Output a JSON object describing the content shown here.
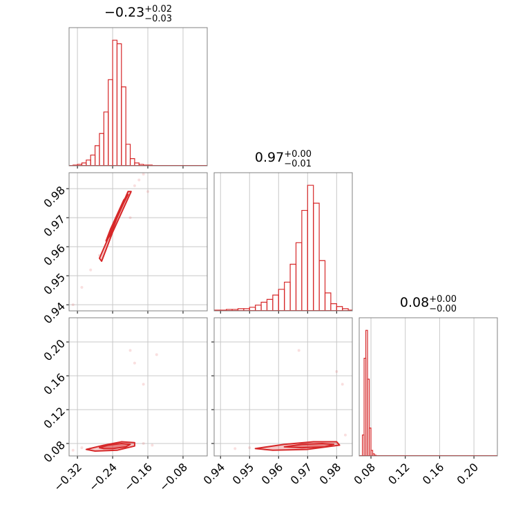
{
  "chart_data": [
    {
      "type": "histogram",
      "title": {
        "value": "−0.23",
        "plus": "+0.02",
        "minus": "−0.03"
      },
      "color": "#d62728",
      "xlim": [
        -0.339,
        -0.025
      ],
      "xticks": [
        {
          "value": -0.32,
          "label": "−0.32"
        },
        {
          "value": -0.24,
          "label": "−0.24"
        },
        {
          "value": -0.16,
          "label": "−0.16"
        },
        {
          "value": -0.08,
          "label": "−0.08"
        }
      ],
      "bins": [
        -0.34,
        -0.33,
        -0.32,
        -0.31,
        -0.3,
        -0.29,
        -0.28,
        -0.27,
        -0.26,
        -0.25,
        -0.24,
        -0.23,
        -0.22,
        -0.21,
        -0.2,
        -0.19,
        -0.18,
        -0.17,
        -0.16,
        -0.15,
        -0.14,
        -0.13,
        -0.12,
        -0.11,
        -0.1,
        -0.09,
        -0.08,
        -0.07,
        -0.06,
        -0.05,
        -0.04,
        -0.03
      ],
      "counts": [
        0,
        1,
        2,
        4,
        8,
        15,
        28,
        45,
        75,
        120,
        175,
        170,
        110,
        30,
        10,
        4,
        2,
        1,
        1,
        0,
        0,
        0,
        0,
        0,
        0,
        0,
        0,
        0,
        0,
        0,
        0
      ]
    },
    {
      "type": "contour",
      "color": "#d62728",
      "xlim": [
        -0.339,
        -0.025
      ],
      "xticks": [
        {
          "value": -0.32,
          "label": "−0.32"
        },
        {
          "value": -0.24,
          "label": "−0.24"
        },
        {
          "value": -0.16,
          "label": "−0.16"
        },
        {
          "value": -0.08,
          "label": "−0.08"
        }
      ],
      "ylim": [
        0.9379,
        0.9855
      ],
      "yticks": [
        0.94,
        0.95,
        0.96,
        0.97,
        0.98
      ],
      "contours": [
        {
          "x": [
            -0.27,
            -0.25,
            -0.225,
            -0.205,
            -0.198,
            -0.213,
            -0.24,
            -0.265
          ],
          "y": [
            0.956,
            0.963,
            0.972,
            0.979,
            0.979,
            0.974,
            0.965,
            0.955
          ]
        },
        {
          "x": [
            -0.255,
            -0.245,
            -0.23,
            -0.215,
            -0.205,
            -0.215,
            -0.23,
            -0.245
          ],
          "y": [
            0.962,
            0.966,
            0.971,
            0.976,
            0.978,
            0.975,
            0.97,
            0.964
          ]
        }
      ],
      "points": {
        "x": [
          -0.33,
          -0.31,
          -0.29,
          -0.27,
          -0.19,
          -0.18,
          -0.17,
          -0.16,
          -0.2
        ],
        "y": [
          0.94,
          0.946,
          0.952,
          0.957,
          0.981,
          0.983,
          0.985,
          0.979,
          0.97
        ]
      }
    },
    {
      "type": "histogram",
      "title": {
        "value": "0.97",
        "plus": "+0.00",
        "minus": "−0.01"
      },
      "color": "#d62728",
      "xlim": [
        0.9378,
        0.9854
      ],
      "xticks": [
        0.94,
        0.95,
        0.96,
        0.97,
        0.98
      ],
      "bins": [
        0.938,
        0.94,
        0.942,
        0.944,
        0.946,
        0.948,
        0.95,
        0.952,
        0.954,
        0.956,
        0.958,
        0.96,
        0.962,
        0.964,
        0.966,
        0.968,
        0.97,
        0.972,
        0.974,
        0.976,
        0.978,
        0.98,
        0.982,
        0.984,
        0.986
      ],
      "counts": [
        1,
        1,
        2,
        2,
        3,
        3,
        5,
        8,
        12,
        16,
        22,
        30,
        40,
        65,
        95,
        140,
        175,
        150,
        70,
        25,
        10,
        6,
        3,
        1
      ]
    },
    {
      "type": "contour",
      "color": "#d62728",
      "xlim": [
        -0.339,
        -0.025
      ],
      "xticks": [
        {
          "value": -0.32,
          "label": "−0.32"
        },
        {
          "value": -0.24,
          "label": "−0.24"
        },
        {
          "value": -0.16,
          "label": "−0.16"
        },
        {
          "value": -0.08,
          "label": "−0.08"
        }
      ],
      "ylim": [
        0.0653,
        0.2286
      ],
      "yticks": [
        0.08,
        0.12,
        0.16,
        {
          "value": 0.2,
          "label": "0.20"
        }
      ],
      "contours": [
        {
          "x": [
            -0.3,
            -0.26,
            -0.22,
            -0.19,
            -0.19,
            -0.23,
            -0.28
          ],
          "y": [
            0.073,
            0.078,
            0.082,
            0.081,
            0.077,
            0.072,
            0.071
          ]
        },
        {
          "x": [
            -0.27,
            -0.25,
            -0.22,
            -0.2,
            -0.21,
            -0.24,
            -0.26
          ],
          "y": [
            0.075,
            0.078,
            0.08,
            0.079,
            0.076,
            0.074,
            0.074
          ]
        }
      ],
      "points": {
        "x": [
          -0.33,
          -0.31,
          -0.17,
          -0.15,
          -0.14,
          -0.17,
          -0.19,
          -0.2
        ],
        "y": [
          0.072,
          0.075,
          0.08,
          0.078,
          0.185,
          0.15,
          0.175,
          0.19
        ]
      }
    },
    {
      "type": "contour",
      "color": "#d62728",
      "xlim": [
        0.9378,
        0.9854
      ],
      "xticks": [
        0.94,
        0.95,
        0.96,
        0.97,
        0.98
      ],
      "ylim": [
        0.0653,
        0.2286
      ],
      "yticks": [
        0.08,
        0.12,
        0.16,
        {
          "value": 0.2,
          "label": "0.20"
        }
      ],
      "contours": [
        {
          "x": [
            0.952,
            0.962,
            0.972,
            0.98,
            0.981,
            0.97,
            0.958
          ],
          "y": [
            0.074,
            0.079,
            0.082,
            0.082,
            0.078,
            0.073,
            0.072
          ]
        },
        {
          "x": [
            0.962,
            0.968,
            0.975,
            0.979,
            0.976,
            0.968
          ],
          "y": [
            0.076,
            0.079,
            0.08,
            0.079,
            0.076,
            0.075
          ]
        }
      ],
      "points": {
        "x": [
          0.945,
          0.95,
          0.983,
          0.98,
          0.967,
          0.982
        ],
        "y": [
          0.074,
          0.075,
          0.09,
          0.165,
          0.19,
          0.15
        ]
      }
    },
    {
      "type": "histogram",
      "title": {
        "value": "0.08",
        "plus": "+0.00",
        "minus": "−0.00"
      },
      "color": "#d62728",
      "xlim": [
        0.0663,
        0.2273
      ],
      "xticks": [
        0.08,
        0.12,
        0.16,
        {
          "value": 0.2,
          "label": "0.20"
        }
      ],
      "bins": [
        0.07,
        0.072,
        0.074,
        0.076,
        0.078,
        0.08,
        0.082,
        0.084,
        0.086,
        0.088,
        0.09
      ],
      "counts": [
        30,
        140,
        180,
        110,
        40,
        8,
        3,
        1,
        0,
        0
      ]
    }
  ]
}
